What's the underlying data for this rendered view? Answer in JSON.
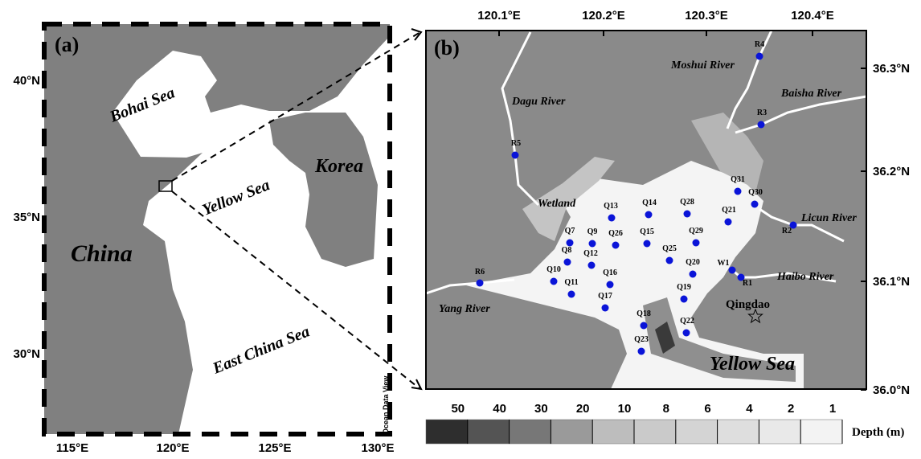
{
  "panel_a": {
    "label": "(a)",
    "bohai": "Bohai Sea",
    "korea": "Korea",
    "yellow_sea": "Yellow Sea",
    "china": "China",
    "east_china_sea": "East China Sea",
    "watermark": "Ocean Data View",
    "lat_ticks": [
      "40°N",
      "35°N",
      "30°N"
    ],
    "lon_ticks": [
      "115°E",
      "120°E",
      "125°E",
      "130°E"
    ]
  },
  "panel_b": {
    "label": "(b)",
    "dagu": "Dagu River",
    "moshui": "Moshui River",
    "baisha": "Baisha River",
    "licun": "Licun River",
    "haibo": "Haibo River",
    "yang": "Yang River",
    "wetland": "Wetland",
    "qingdao": "Qingdao",
    "yellow_sea": "Yellow Sea",
    "lon_ticks": [
      "120.1°E",
      "120.2°E",
      "120.3°E",
      "120.4°E"
    ],
    "lat_ticks": [
      "36.3°N",
      "36.2°N",
      "36.1°N",
      "36.0°N"
    ],
    "stations": [
      "R4",
      "R3",
      "R5",
      "R2",
      "R1",
      "W1",
      "R6",
      "Q31",
      "Q30",
      "Q28",
      "Q14",
      "Q13",
      "Q21",
      "Q29",
      "Q15",
      "Q26",
      "Q9",
      "Q7",
      "Q8",
      "Q12",
      "Q25",
      "Q20",
      "Q10",
      "Q16",
      "Q11",
      "Q19",
      "Q17",
      "Q18",
      "Q22",
      "Q23"
    ],
    "station_color": "#0a14d8",
    "legend": {
      "unit": "Depth (m)",
      "ticks": [
        50,
        40,
        30,
        20,
        10,
        8,
        6,
        4,
        2,
        1
      ],
      "colors": [
        "#2e2e2e",
        "#545454",
        "#777777",
        "#9a9a9a",
        "#bdbdbd",
        "#cacaca",
        "#d4d4d4",
        "#dedede",
        "#e9e9e9",
        "#f3f3f3"
      ]
    }
  }
}
